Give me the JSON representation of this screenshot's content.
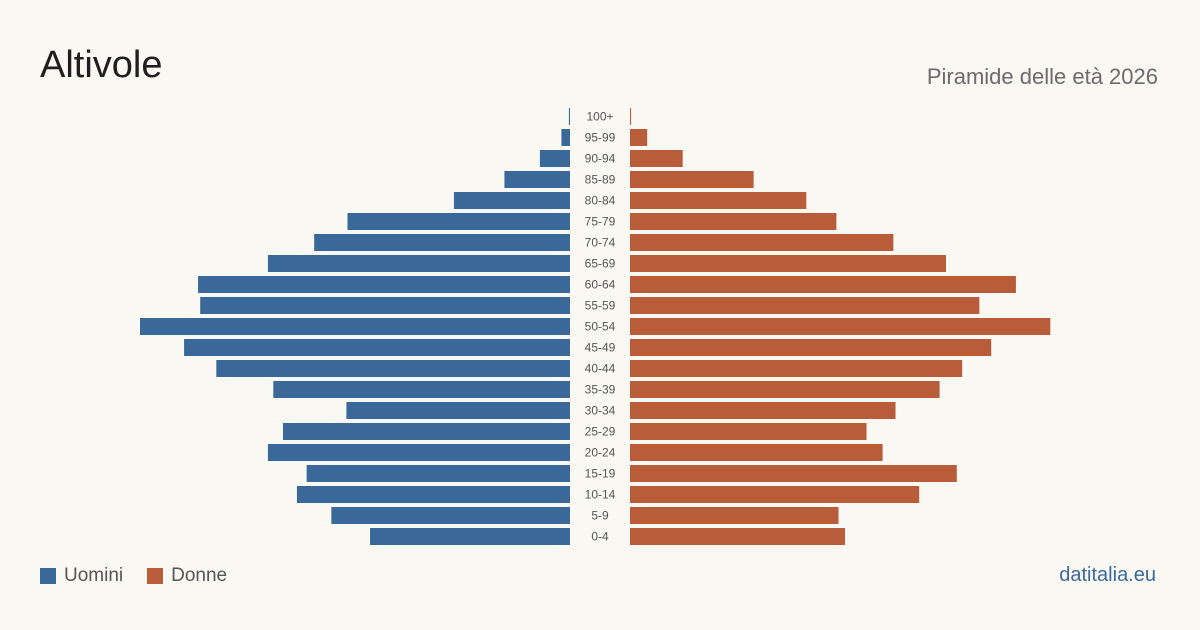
{
  "header": {
    "title": "Altivole",
    "subtitle": "Piramide delle età 2026"
  },
  "legend": {
    "men_label": "Uomini",
    "women_label": "Donne"
  },
  "source": "datitalia.eu",
  "colors": {
    "men": "#3a6899",
    "women": "#b95c3a"
  },
  "chart_data": {
    "type": "bar",
    "orientation": "horizontal-pyramid",
    "categories": [
      "100+",
      "95-99",
      "90-94",
      "85-89",
      "80-84",
      "75-79",
      "70-74",
      "65-69",
      "60-64",
      "55-59",
      "50-54",
      "45-49",
      "40-44",
      "35-39",
      "30-34",
      "25-29",
      "20-24",
      "15-19",
      "10-14",
      "5-9",
      "0-4"
    ],
    "series": [
      {
        "name": "Uomini",
        "values": [
          1,
          8,
          28,
          61,
          108,
          207,
          238,
          281,
          346,
          344,
          400,
          359,
          329,
          276,
          208,
          267,
          281,
          245,
          254,
          222,
          186
        ]
      },
      {
        "name": "Donne",
        "values": [
          1,
          16,
          49,
          115,
          164,
          192,
          245,
          294,
          359,
          325,
          391,
          336,
          309,
          288,
          247,
          220,
          235,
          304,
          269,
          194,
          200
        ]
      }
    ]
  }
}
